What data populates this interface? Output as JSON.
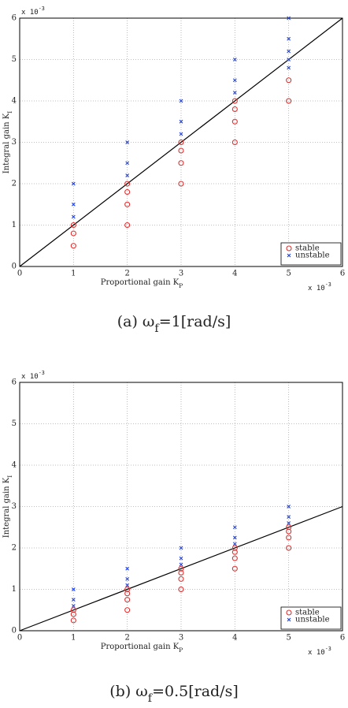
{
  "chart_data": [
    {
      "type": "scatter",
      "caption": "(a) ω",
      "caption_sub": "f",
      "caption_rest": "=1[rad/s]",
      "xlabel": "Proportional gain K",
      "xlabel_sub": "P",
      "ylabel": "Integral gain K",
      "ylabel_sub": "I",
      "x_multiplier": "x 10",
      "x_multiplier_exp": "-3",
      "y_multiplier": "x 10",
      "y_multiplier_exp": "-3",
      "xlim": [
        0,
        6
      ],
      "ylim": [
        0,
        6
      ],
      "xticks": [
        0,
        1,
        2,
        3,
        4,
        5,
        6
      ],
      "yticks": [
        0,
        1,
        2,
        3,
        4,
        5,
        6
      ],
      "grid": true,
      "legend": "lower right",
      "boundary": {
        "x": [
          0,
          6
        ],
        "y": [
          0,
          6
        ],
        "color": "#000000"
      },
      "series": [
        {
          "name": "stable",
          "color": "#e03030",
          "marker": "o",
          "x": [
            1,
            1,
            1,
            2,
            2,
            2,
            2,
            3,
            3,
            3,
            3,
            4,
            4,
            4,
            4,
            5,
            5
          ],
          "values": [
            0.5,
            0.8,
            1.0,
            1.0,
            1.5,
            1.8,
            2.0,
            2.0,
            2.5,
            2.8,
            3.0,
            3.0,
            3.5,
            3.8,
            4.0,
            4.0,
            4.5
          ]
        },
        {
          "name": "unstable",
          "color": "#2040e0",
          "marker": "x",
          "x": [
            1,
            1,
            1,
            2,
            2,
            2,
            3,
            3,
            3,
            4,
            4,
            4,
            5,
            5,
            5,
            5,
            5
          ],
          "values": [
            1.2,
            1.5,
            2.0,
            2.2,
            2.5,
            3.0,
            3.2,
            3.5,
            4.0,
            4.2,
            4.5,
            5.0,
            4.8,
            5.0,
            5.2,
            5.5,
            6.0
          ]
        }
      ]
    },
    {
      "type": "scatter",
      "caption": "(b) ω",
      "caption_sub": "f",
      "caption_rest": "=0.5[rad/s]",
      "xlabel": "Proportional gain K",
      "xlabel_sub": "P",
      "ylabel": "Integral gain K",
      "ylabel_sub": "I",
      "x_multiplier": "x 10",
      "x_multiplier_exp": "-3",
      "y_multiplier": "x 10",
      "y_multiplier_exp": "-3",
      "xlim": [
        0,
        6
      ],
      "ylim": [
        0,
        6
      ],
      "xticks": [
        0,
        1,
        2,
        3,
        4,
        5,
        6
      ],
      "yticks": [
        0,
        1,
        2,
        3,
        4,
        5,
        6
      ],
      "grid": true,
      "legend": "lower right",
      "boundary": {
        "x": [
          0,
          6
        ],
        "y": [
          0,
          3
        ],
        "color": "#000000"
      },
      "series": [
        {
          "name": "stable",
          "color": "#e03030",
          "marker": "o",
          "x": [
            1,
            1,
            1,
            2,
            2,
            2,
            2,
            3,
            3,
            3,
            3,
            4,
            4,
            4,
            4,
            5,
            5,
            5,
            5
          ],
          "values": [
            0.25,
            0.4,
            0.5,
            0.5,
            0.75,
            0.9,
            1.0,
            1.0,
            1.25,
            1.4,
            1.5,
            1.5,
            1.75,
            1.9,
            2.0,
            2.0,
            2.25,
            2.4,
            2.5
          ]
        },
        {
          "name": "unstable",
          "color": "#2040e0",
          "marker": "x",
          "x": [
            1,
            1,
            1,
            2,
            2,
            2,
            3,
            3,
            3,
            4,
            4,
            4,
            5,
            5,
            5
          ],
          "values": [
            0.6,
            0.75,
            1.0,
            1.1,
            1.25,
            1.5,
            1.6,
            1.75,
            2.0,
            2.1,
            2.25,
            2.5,
            2.6,
            2.75,
            3.0
          ]
        }
      ]
    }
  ]
}
